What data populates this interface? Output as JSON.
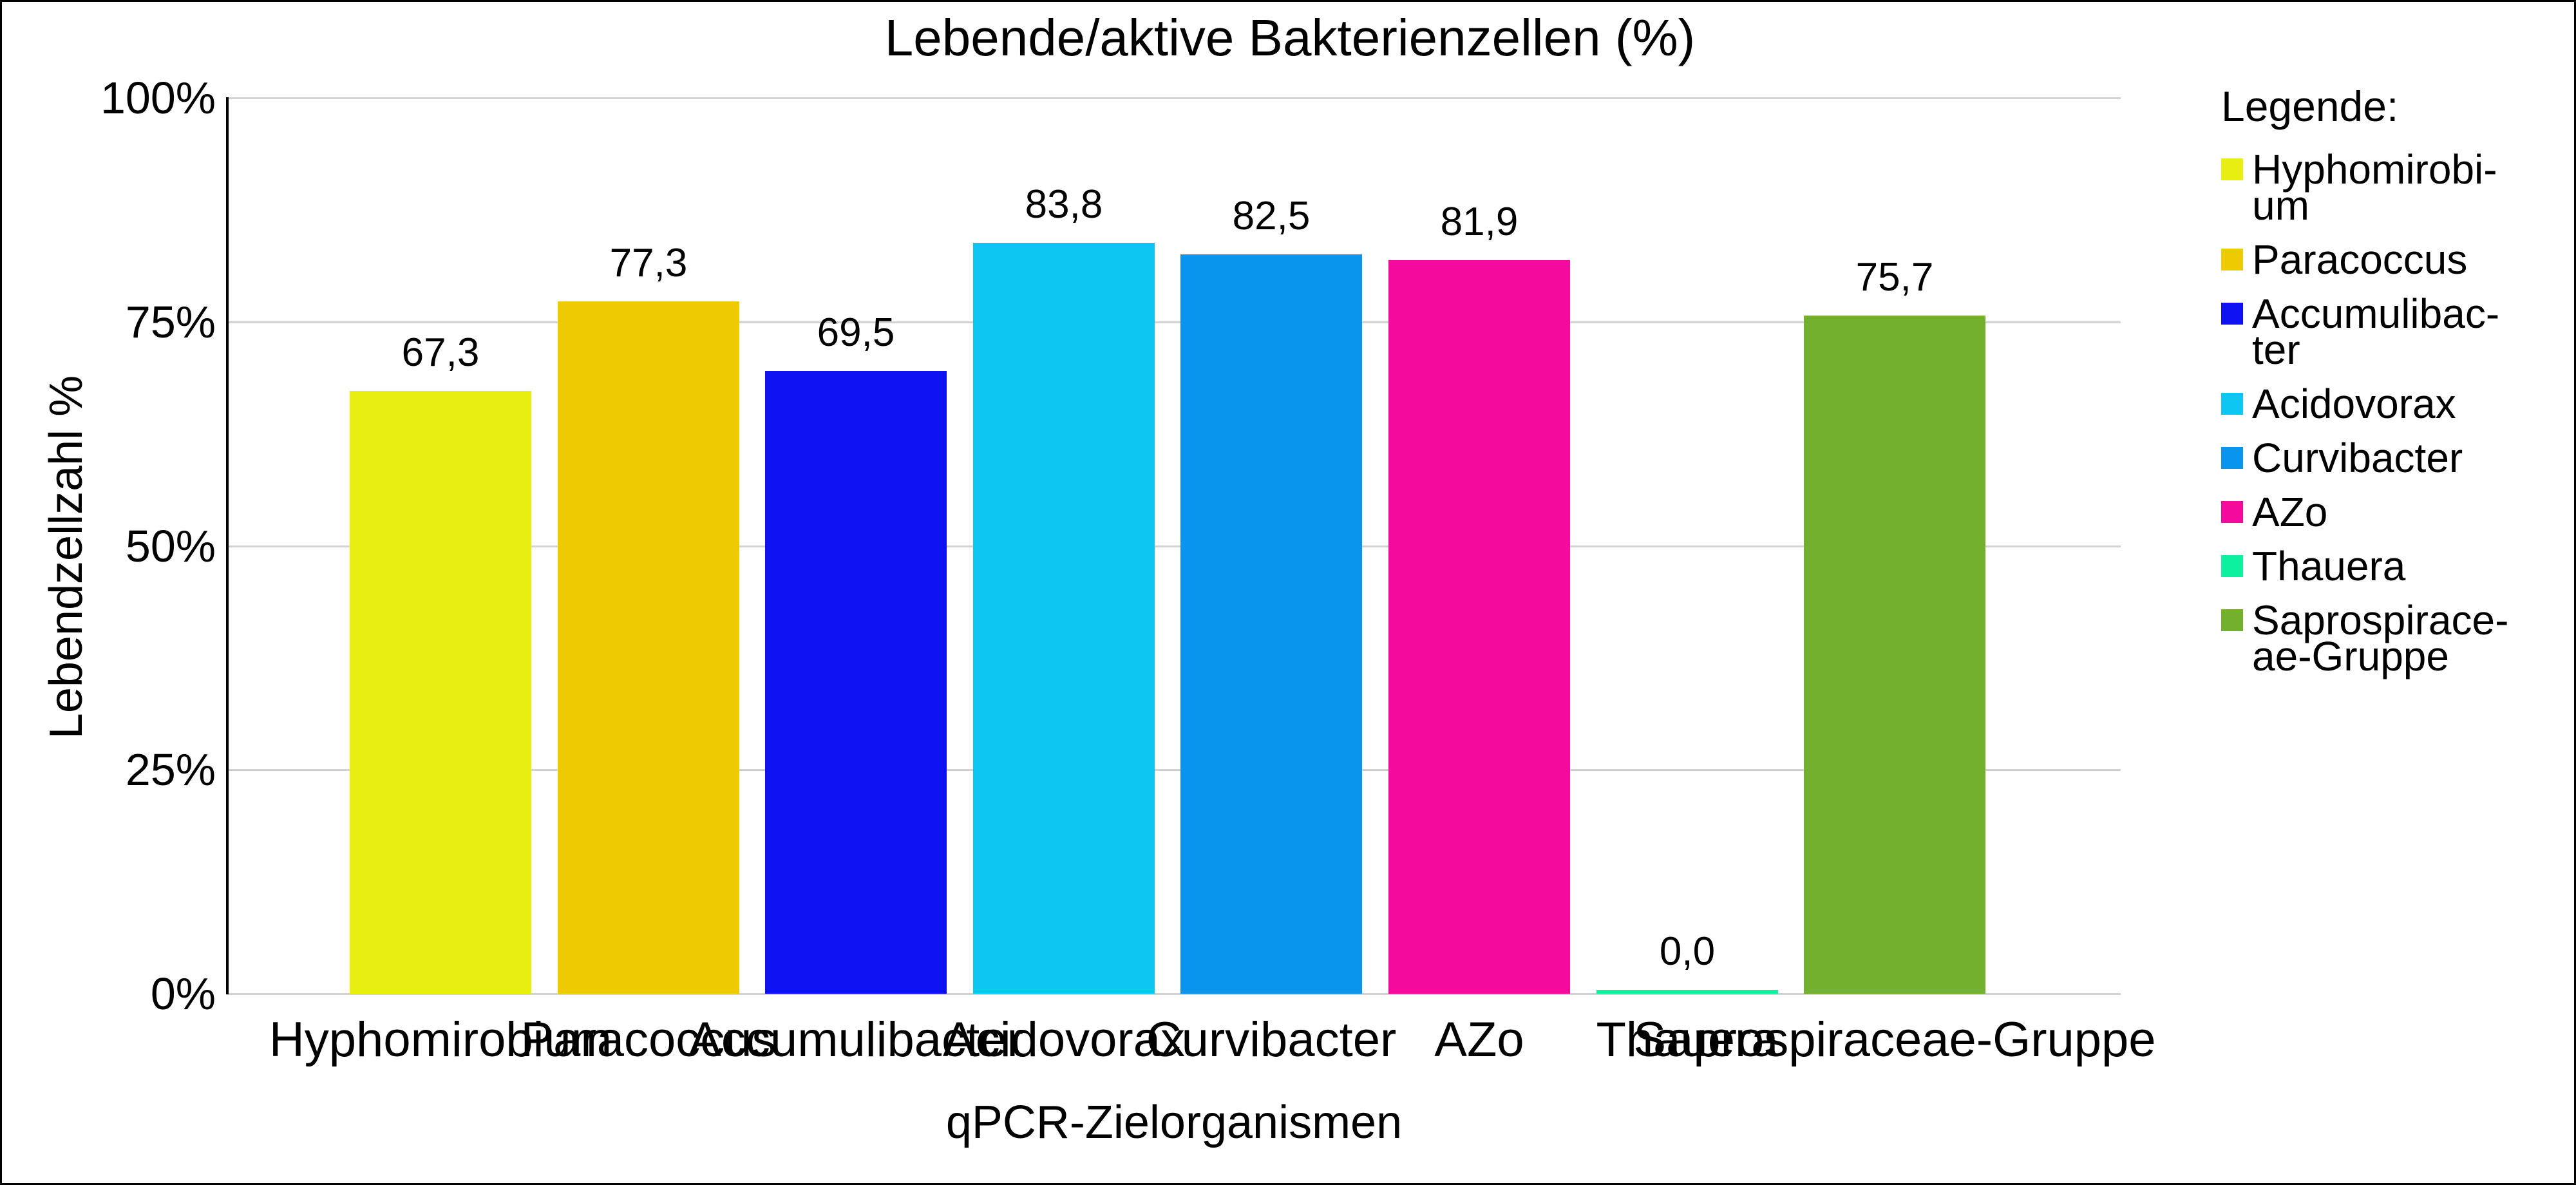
{
  "title": "Lebende/aktive Bakterienzellen (%)",
  "y_axis": {
    "title": "Lebendzellzahl %",
    "tick_labels": [
      "100%",
      "75%",
      "50%",
      "25%",
      "0%"
    ]
  },
  "x_axis": {
    "title": "qPCR-Zielorganismen"
  },
  "legend": {
    "heading": "Legende:",
    "items": [
      {
        "name": "Hyphomirobium",
        "lines": [
          "Hyphomirobi-",
          "um"
        ],
        "color": "#e8ee12"
      },
      {
        "name": "Paracoccus",
        "lines": [
          "Paracoccus"
        ],
        "color": "#eeca02"
      },
      {
        "name": "Accumulibacter",
        "lines": [
          "Accumulibac-",
          "ter"
        ],
        "color": "#0e12f0"
      },
      {
        "name": "Acidovorax",
        "lines": [
          "Acidovorax"
        ],
        "color": "#0dc7f2"
      },
      {
        "name": "Curvibacter",
        "lines": [
          "Curvibacter"
        ],
        "color": "#0994ee"
      },
      {
        "name": "AZo",
        "lines": [
          "AZo"
        ],
        "color": "#f40b9d"
      },
      {
        "name": "Thauera",
        "lines": [
          "Thauera"
        ],
        "color": "#0df0a0"
      },
      {
        "name": "Saprospiraceae-Gruppe",
        "lines": [
          "Saprospirace-",
          "ae-Gruppe"
        ],
        "color": "#72b02e"
      }
    ]
  },
  "chart_data": {
    "type": "bar",
    "title": "Lebende/aktive Bakterienzellen (%)",
    "xlabel": "qPCR-Zielorganismen",
    "ylabel": "Lebendzellzahl %",
    "categories": [
      "Hyphomirobium",
      "Paracoccus",
      "Accumulibacter",
      "Acidovorax",
      "Curvibacter",
      "AZo",
      "Thauera",
      "Saprospiraceae-Gruppe"
    ],
    "values": [
      67.3,
      77.3,
      69.5,
      83.8,
      82.5,
      81.9,
      0.0,
      75.7
    ],
    "value_labels": [
      "67,3",
      "77,3",
      "69,5",
      "83,8",
      "82,5",
      "81,9",
      "0,0",
      "75,7"
    ],
    "colors": [
      "#e8ee12",
      "#eeca02",
      "#0e12f0",
      "#0dc7f2",
      "#0994ee",
      "#f40b9d",
      "#0df0a0",
      "#72b02e"
    ],
    "ylim": [
      0,
      100
    ],
    "yticks": [
      100,
      75,
      50,
      25,
      0
    ],
    "grid": true,
    "gridline_color": "#d2d2d2",
    "legend_position": "right"
  }
}
